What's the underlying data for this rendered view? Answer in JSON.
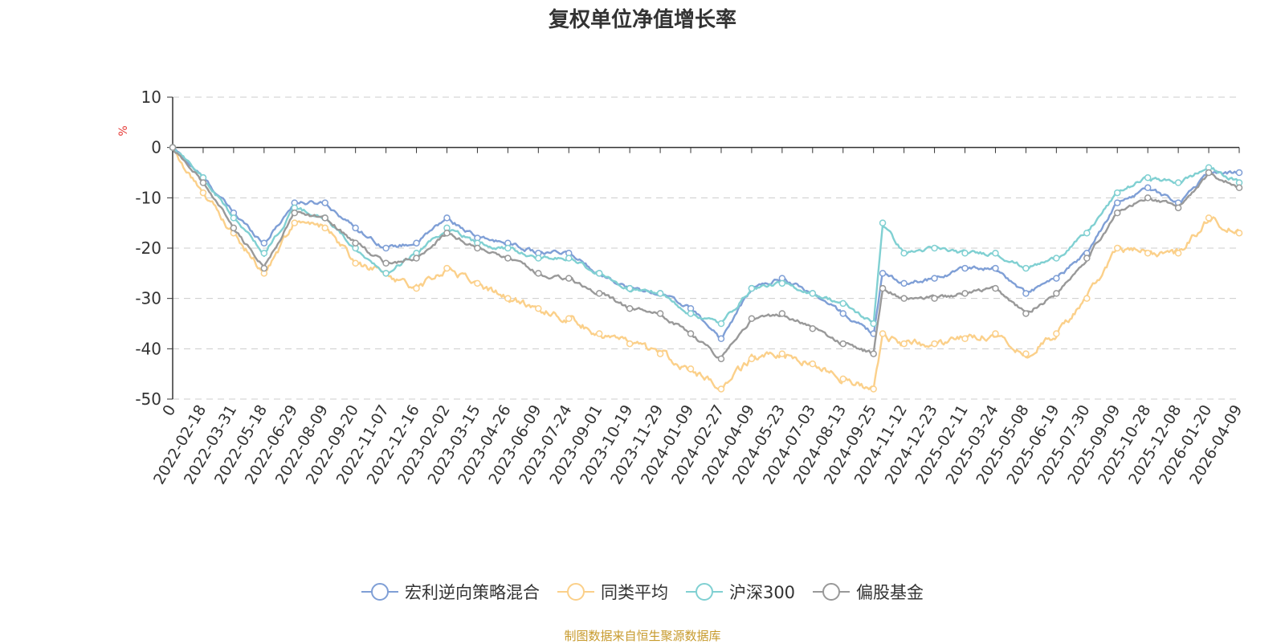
{
  "chart_data": {
    "type": "line",
    "title": "复权单位净值增长率",
    "ylabel": "%",
    "xlabel": "",
    "ylim": [
      -50,
      10
    ],
    "yticks": [
      10,
      0,
      -10,
      -20,
      -30,
      -40,
      -50
    ],
    "grid": "horizontal-dashed",
    "legend_position": "bottom-center",
    "x_tick_labels": [
      "0",
      "2022-02-18",
      "2022-03-31",
      "2022-05-18",
      "2022-06-29",
      "2022-08-09",
      "2022-09-20",
      "2022-11-07",
      "2022-12-16",
      "2023-02-02",
      "2023-03-15",
      "2023-04-26",
      "2023-06-09",
      "2023-07-24",
      "2023-09-01",
      "2023-10-19",
      "2023-11-29",
      "2024-01-09",
      "2024-02-27",
      "2024-04-09",
      "2024-05-23",
      "2024-07-03",
      "2024-08-13",
      "2024-09-25",
      "2024-11-12",
      "2024-12-23",
      "2025-02-11",
      "2025-03-24",
      "2025-05-08",
      "2025-06-19",
      "2025-07-30",
      "2025-09-09",
      "2025-10-28",
      "2025-12-08",
      "2026-01-20",
      "2026-04-09"
    ],
    "series": [
      {
        "name": "宏利逆向策略混合",
        "color": "#7f9fd6",
        "anchors": [
          [
            0,
            0
          ],
          [
            1,
            -6
          ],
          [
            2,
            -13
          ],
          [
            3,
            -19
          ],
          [
            4,
            -11
          ],
          [
            5,
            -11
          ],
          [
            6,
            -16
          ],
          [
            7,
            -20
          ],
          [
            8,
            -19
          ],
          [
            9,
            -14
          ],
          [
            10,
            -18
          ],
          [
            11,
            -19
          ],
          [
            12,
            -21
          ],
          [
            13,
            -21
          ],
          [
            14,
            -25
          ],
          [
            15,
            -28
          ],
          [
            16,
            -29
          ],
          [
            17,
            -32
          ],
          [
            18,
            -38
          ],
          [
            19,
            -28
          ],
          [
            20,
            -26
          ],
          [
            21,
            -29
          ],
          [
            22,
            -33
          ],
          [
            23,
            -37
          ],
          [
            23.3,
            -25
          ],
          [
            24,
            -27
          ],
          [
            25,
            -26
          ],
          [
            26,
            -24
          ],
          [
            27,
            -24
          ],
          [
            28,
            -29
          ],
          [
            29,
            -26
          ],
          [
            30,
            -21
          ],
          [
            31,
            -11
          ],
          [
            32,
            -8
          ],
          [
            33,
            -11
          ],
          [
            34,
            -5
          ],
          [
            35,
            -5
          ]
        ]
      },
      {
        "name": "同类平均",
        "color": "#fbd08a",
        "anchors": [
          [
            0,
            0
          ],
          [
            1,
            -9
          ],
          [
            2,
            -17
          ],
          [
            3,
            -25
          ],
          [
            4,
            -15
          ],
          [
            5,
            -16
          ],
          [
            6,
            -23
          ],
          [
            7,
            -25
          ],
          [
            8,
            -28
          ],
          [
            9,
            -24
          ],
          [
            10,
            -27
          ],
          [
            11,
            -30
          ],
          [
            12,
            -32
          ],
          [
            13,
            -34
          ],
          [
            14,
            -37
          ],
          [
            15,
            -39
          ],
          [
            16,
            -41
          ],
          [
            17,
            -44
          ],
          [
            18,
            -48
          ],
          [
            19,
            -42
          ],
          [
            20,
            -41
          ],
          [
            21,
            -43
          ],
          [
            22,
            -46
          ],
          [
            23,
            -48
          ],
          [
            23.3,
            -37
          ],
          [
            24,
            -39
          ],
          [
            25,
            -39
          ],
          [
            26,
            -38
          ],
          [
            27,
            -37
          ],
          [
            28,
            -41
          ],
          [
            29,
            -37
          ],
          [
            30,
            -30
          ],
          [
            31,
            -20
          ],
          [
            32,
            -21
          ],
          [
            33,
            -21
          ],
          [
            34,
            -14
          ],
          [
            35,
            -17
          ]
        ]
      },
      {
        "name": "沪深300",
        "color": "#80d0d2",
        "anchors": [
          [
            0,
            0
          ],
          [
            1,
            -6
          ],
          [
            2,
            -14
          ],
          [
            3,
            -21
          ],
          [
            4,
            -12
          ],
          [
            5,
            -14
          ],
          [
            6,
            -20
          ],
          [
            7,
            -25
          ],
          [
            8,
            -21
          ],
          [
            9,
            -16
          ],
          [
            10,
            -19
          ],
          [
            11,
            -20
          ],
          [
            12,
            -22
          ],
          [
            13,
            -22
          ],
          [
            14,
            -25
          ],
          [
            15,
            -28
          ],
          [
            16,
            -29
          ],
          [
            17,
            -33
          ],
          [
            18,
            -35
          ],
          [
            19,
            -28
          ],
          [
            20,
            -27
          ],
          [
            21,
            -29
          ],
          [
            22,
            -31
          ],
          [
            23,
            -35
          ],
          [
            23.3,
            -15
          ],
          [
            24,
            -21
          ],
          [
            25,
            -20
          ],
          [
            26,
            -21
          ],
          [
            27,
            -21
          ],
          [
            28,
            -24
          ],
          [
            29,
            -22
          ],
          [
            30,
            -17
          ],
          [
            31,
            -9
          ],
          [
            32,
            -6
          ],
          [
            33,
            -7
          ],
          [
            34,
            -4
          ],
          [
            35,
            -7
          ]
        ]
      },
      {
        "name": "偏股基金",
        "color": "#999999",
        "anchors": [
          [
            0,
            0
          ],
          [
            1,
            -7
          ],
          [
            2,
            -16
          ],
          [
            3,
            -24
          ],
          [
            4,
            -13
          ],
          [
            5,
            -14
          ],
          [
            6,
            -19
          ],
          [
            7,
            -23
          ],
          [
            8,
            -22
          ],
          [
            9,
            -17
          ],
          [
            10,
            -20
          ],
          [
            11,
            -22
          ],
          [
            12,
            -25
          ],
          [
            13,
            -26
          ],
          [
            14,
            -29
          ],
          [
            15,
            -32
          ],
          [
            16,
            -33
          ],
          [
            17,
            -37
          ],
          [
            18,
            -42
          ],
          [
            19,
            -34
          ],
          [
            20,
            -33
          ],
          [
            21,
            -36
          ],
          [
            22,
            -39
          ],
          [
            23,
            -41
          ],
          [
            23.3,
            -28
          ],
          [
            24,
            -30
          ],
          [
            25,
            -30
          ],
          [
            26,
            -29
          ],
          [
            27,
            -28
          ],
          [
            28,
            -33
          ],
          [
            29,
            -29
          ],
          [
            30,
            -22
          ],
          [
            31,
            -13
          ],
          [
            32,
            -10
          ],
          [
            33,
            -12
          ],
          [
            34,
            -5
          ],
          [
            35,
            -8
          ]
        ]
      }
    ]
  },
  "legend": [
    {
      "label": "宏利逆向策略混合",
      "color": "#7f9fd6"
    },
    {
      "label": "同类平均",
      "color": "#fbd08a"
    },
    {
      "label": "沪深300",
      "color": "#80d0d2"
    },
    {
      "label": "偏股基金",
      "color": "#999999"
    }
  ],
  "source_note": "制图数据来自恒生聚源数据库"
}
